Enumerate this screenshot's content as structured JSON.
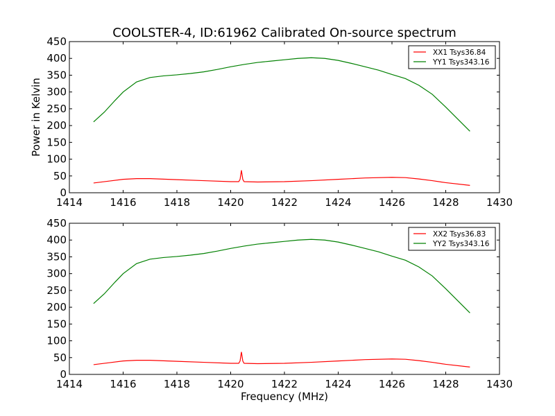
{
  "chart_data": {
    "type": "line",
    "title": "COOLSTER-4, ID:61962 Calibrated On-source spectrum",
    "xlabel": "Frequency (MHz)",
    "ylabel": "Power in Kelvin",
    "xlim": [
      1414,
      1430
    ],
    "ylim": [
      0,
      450
    ],
    "xticks": [
      "1414",
      "1416",
      "1418",
      "1420",
      "1422",
      "1424",
      "1426",
      "1428",
      "1430"
    ],
    "yticks": [
      "0",
      "50",
      "100",
      "150",
      "200",
      "250",
      "300",
      "350",
      "400",
      "450"
    ],
    "legend_position": "top-right",
    "colors": {
      "red": "#ff0000",
      "green": "#008000"
    },
    "panels": [
      {
        "series": [
          {
            "name": "XX1 Tsys36.84",
            "color": "#ff0000",
            "x": [
              1414.9,
              1415.5,
              1416,
              1416.5,
              1417,
              1418,
              1419,
              1420,
              1420.3,
              1420.35,
              1420.4,
              1420.45,
              1420.5,
              1421,
              1422,
              1423,
              1424,
              1425,
              1426,
              1426.5,
              1427,
              1427.5,
              1428,
              1428.9
            ],
            "y": [
              29,
              35,
              40,
              42,
              42,
              39,
              36,
              33,
              33,
              40,
              67,
              40,
              33,
              32,
              33,
              36,
              40,
              44,
              46,
              45,
              41,
              36,
              30,
              22
            ]
          },
          {
            "name": "YY1 Tsys343.16",
            "color": "#008000",
            "x": [
              1414.9,
              1415.3,
              1415.7,
              1416,
              1416.5,
              1417,
              1417.5,
              1418,
              1418.5,
              1419,
              1419.5,
              1420,
              1420.5,
              1421,
              1421.5,
              1422,
              1422.5,
              1423,
              1423.5,
              1424,
              1424.5,
              1425,
              1425.5,
              1426,
              1426.5,
              1427,
              1427.5,
              1428,
              1428.5,
              1428.9
            ],
            "y": [
              211,
              240,
              275,
              300,
              330,
              343,
              348,
              351,
              355,
              360,
              367,
              375,
              382,
              388,
              392,
              396,
              400,
              402,
              400,
              394,
              385,
              375,
              365,
              352,
              340,
              320,
              293,
              255,
              215,
              183
            ]
          }
        ]
      },
      {
        "series": [
          {
            "name": "XX2 Tsys36.83",
            "color": "#ff0000",
            "x": [
              1414.9,
              1415.5,
              1416,
              1416.5,
              1417,
              1418,
              1419,
              1420,
              1420.3,
              1420.35,
              1420.4,
              1420.45,
              1420.5,
              1421,
              1422,
              1423,
              1424,
              1425,
              1426,
              1426.5,
              1427,
              1427.5,
              1428,
              1428.9
            ],
            "y": [
              29,
              35,
              40,
              42,
              42,
              39,
              36,
              33,
              33,
              40,
              67,
              40,
              33,
              32,
              33,
              36,
              40,
              44,
              46,
              45,
              41,
              36,
              30,
              22
            ]
          },
          {
            "name": "YY2 Tsys343.16",
            "color": "#008000",
            "x": [
              1414.9,
              1415.3,
              1415.7,
              1416,
              1416.5,
              1417,
              1417.5,
              1418,
              1418.5,
              1419,
              1419.5,
              1420,
              1420.5,
              1421,
              1421.5,
              1422,
              1422.5,
              1423,
              1423.5,
              1424,
              1424.5,
              1425,
              1425.5,
              1426,
              1426.5,
              1427,
              1427.5,
              1428,
              1428.5,
              1428.9
            ],
            "y": [
              211,
              240,
              275,
              300,
              330,
              343,
              348,
              351,
              355,
              360,
              367,
              375,
              382,
              388,
              392,
              396,
              400,
              402,
              400,
              394,
              385,
              375,
              365,
              352,
              340,
              320,
              293,
              255,
              215,
              183
            ]
          }
        ]
      }
    ]
  }
}
